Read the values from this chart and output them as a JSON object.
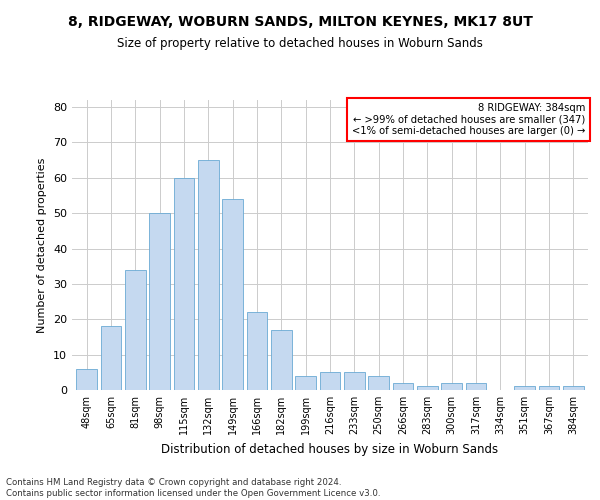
{
  "title": "8, RIDGEWAY, WOBURN SANDS, MILTON KEYNES, MK17 8UT",
  "subtitle": "Size of property relative to detached houses in Woburn Sands",
  "xlabel": "Distribution of detached houses by size in Woburn Sands",
  "ylabel": "Number of detached properties",
  "categories": [
    "48sqm",
    "65sqm",
    "81sqm",
    "98sqm",
    "115sqm",
    "132sqm",
    "149sqm",
    "166sqm",
    "182sqm",
    "199sqm",
    "216sqm",
    "233sqm",
    "250sqm",
    "266sqm",
    "283sqm",
    "300sqm",
    "317sqm",
    "334sqm",
    "351sqm",
    "367sqm",
    "384sqm"
  ],
  "values": [
    6,
    18,
    34,
    50,
    60,
    65,
    54,
    22,
    17,
    4,
    5,
    5,
    4,
    2,
    1,
    2,
    2,
    0,
    1,
    1,
    1
  ],
  "bar_color": "#c5d9f0",
  "bar_edge_color": "#6aaad4",
  "ylim": [
    0,
    82
  ],
  "yticks": [
    0,
    10,
    20,
    30,
    40,
    50,
    60,
    70,
    80
  ],
  "annotation_box_text": [
    "8 RIDGEWAY: 384sqm",
    "← >99% of detached houses are smaller (347)",
    "<1% of semi-detached houses are larger (0) →"
  ],
  "annotation_box_color": "#ff0000",
  "footer_line1": "Contains HM Land Registry data © Crown copyright and database right 2024.",
  "footer_line2": "Contains public sector information licensed under the Open Government Licence v3.0.",
  "background_color": "#ffffff",
  "grid_color": "#cccccc"
}
